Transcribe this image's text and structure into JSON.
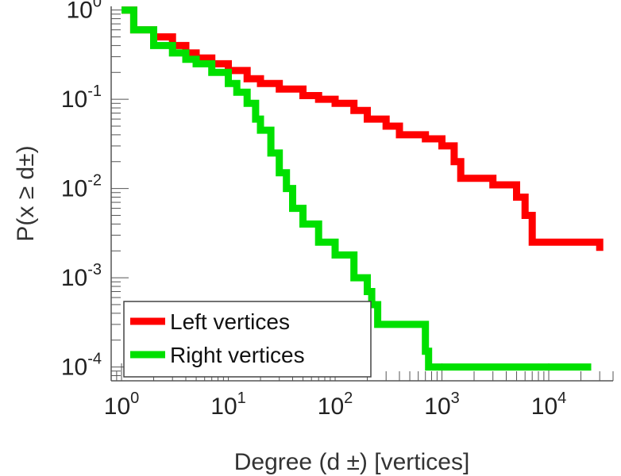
{
  "chart_data": {
    "type": "line",
    "title": "",
    "xlabel": "Degree (d ±) [vertices]",
    "ylabel": "P(x ≥ d±)",
    "xscale": "log",
    "yscale": "log",
    "xlim": [
      0.8,
      40000
    ],
    "ylim": [
      7e-05,
      1.1
    ],
    "grid": false,
    "legend_placement": "bottom-left",
    "x_tick_labels": [
      {
        "value": 1,
        "base": "10",
        "exp": "0"
      },
      {
        "value": 10,
        "base": "10",
        "exp": "1"
      },
      {
        "value": 100,
        "base": "10",
        "exp": "2"
      },
      {
        "value": 1000,
        "base": "10",
        "exp": "3"
      },
      {
        "value": 10000,
        "base": "10",
        "exp": "4"
      }
    ],
    "y_tick_labels": [
      {
        "value": 1,
        "base": "10",
        "exp": "0"
      },
      {
        "value": 0.1,
        "base": "10",
        "exp": "-1"
      },
      {
        "value": 0.01,
        "base": "10",
        "exp": "-2"
      },
      {
        "value": 0.001,
        "base": "10",
        "exp": "-3"
      },
      {
        "value": 0.0001,
        "base": "10",
        "exp": "-4"
      }
    ],
    "series": [
      {
        "name": "Left vertices",
        "color": "#ff0000",
        "points": [
          [
            1,
            1.0
          ],
          [
            1.3,
            0.6
          ],
          [
            2,
            0.5
          ],
          [
            3,
            0.4
          ],
          [
            4,
            0.33
          ],
          [
            5,
            0.29
          ],
          [
            7,
            0.25
          ],
          [
            10,
            0.21
          ],
          [
            15,
            0.17
          ],
          [
            20,
            0.15
          ],
          [
            30,
            0.13
          ],
          [
            50,
            0.11
          ],
          [
            70,
            0.1
          ],
          [
            100,
            0.09
          ],
          [
            150,
            0.075
          ],
          [
            200,
            0.06
          ],
          [
            300,
            0.05
          ],
          [
            400,
            0.04
          ],
          [
            700,
            0.036
          ],
          [
            1000,
            0.03
          ],
          [
            1300,
            0.02
          ],
          [
            1500,
            0.013
          ],
          [
            3000,
            0.011
          ],
          [
            5000,
            0.008
          ],
          [
            6000,
            0.005
          ],
          [
            7000,
            0.0025
          ],
          [
            20000,
            0.0025
          ],
          [
            30000,
            0.002
          ]
        ]
      },
      {
        "name": "Right vertices",
        "color": "#00e000",
        "points": [
          [
            1,
            1.0
          ],
          [
            1.3,
            0.6
          ],
          [
            2,
            0.4
          ],
          [
            3,
            0.33
          ],
          [
            4,
            0.28
          ],
          [
            5,
            0.25
          ],
          [
            7,
            0.2
          ],
          [
            10,
            0.15
          ],
          [
            12,
            0.12
          ],
          [
            15,
            0.09
          ],
          [
            18,
            0.06
          ],
          [
            20,
            0.045
          ],
          [
            25,
            0.025
          ],
          [
            30,
            0.015
          ],
          [
            35,
            0.01
          ],
          [
            40,
            0.006
          ],
          [
            50,
            0.004
          ],
          [
            70,
            0.0025
          ],
          [
            100,
            0.0018
          ],
          [
            150,
            0.001
          ],
          [
            200,
            0.0007
          ],
          [
            220,
            0.0005
          ],
          [
            250,
            0.0003
          ],
          [
            700,
            0.00015
          ],
          [
            750,
            0.0001
          ],
          [
            25000,
            0.0001
          ]
        ]
      }
    ]
  }
}
